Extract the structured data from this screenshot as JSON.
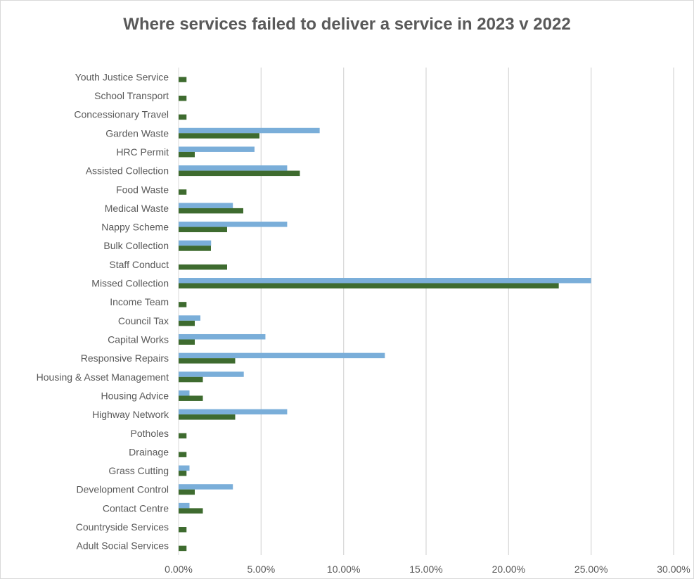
{
  "chart_data": {
    "type": "bar",
    "orientation": "horizontal",
    "title": "Where services failed to deliver a service in 2023 v 2022",
    "xlabel": "",
    "ylabel": "",
    "xlim": [
      0,
      0.3
    ],
    "x_ticks": [
      "0.00%",
      "5.00%",
      "10.00%",
      "15.00%",
      "20.00%",
      "25.00%",
      "30.00%"
    ],
    "grid": "vertical",
    "legend": "none",
    "categories": [
      "Youth Justice Service",
      "School Transport",
      "Concessionary Travel",
      "Garden Waste",
      "HRC Permit",
      "Assisted Collection",
      "Food Waste",
      "Medical Waste",
      "Nappy Scheme",
      "Bulk Collection",
      "Staff Conduct",
      "Missed Collection",
      "Income Team",
      "Council Tax",
      "Capital Works",
      "Responsive Repairs",
      "Housing & Asset Management",
      "Housing Advice",
      "Highway Network",
      "Potholes",
      "Drainage",
      "Grass Cutting",
      "Development Control",
      "Contact Centre",
      "Countryside Services",
      "Adult Social Services"
    ],
    "series": [
      {
        "color": "#7aaed9",
        "values": [
          0,
          0,
          0,
          0.0855,
          0.046,
          0.0658,
          0,
          0.0329,
          0.0658,
          0.0197,
          0,
          0.25,
          0,
          0.0132,
          0.0526,
          0.125,
          0.0395,
          0.0066,
          0.0658,
          0,
          0,
          0.0066,
          0.0329,
          0.0066,
          0,
          0
        ]
      },
      {
        "color": "#3e6b2f",
        "values": [
          0.0048,
          0.0048,
          0.0048,
          0.049,
          0.0098,
          0.0735,
          0.0048,
          0.0392,
          0.0294,
          0.0196,
          0.0294,
          0.2304,
          0.0048,
          0.0098,
          0.0098,
          0.0343,
          0.0147,
          0.0147,
          0.0343,
          0.0048,
          0.0048,
          0.0048,
          0.0098,
          0.0147,
          0.0048,
          0.0048
        ]
      }
    ]
  }
}
